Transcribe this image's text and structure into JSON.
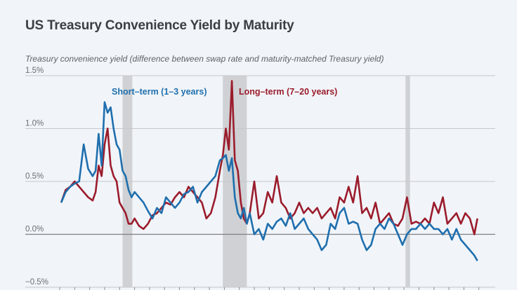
{
  "title": "US Treasury Convenience Yield by Maturity",
  "subtitle": "Treasury convenience yield (difference between swap rate and maturity-matched Treasury yield)",
  "chart_data": {
    "type": "line",
    "title": "US Treasury Convenience Yield by Maturity",
    "ylabel": "Treasury convenience yield (difference between swap rate and maturity-matched Treasury yield)",
    "xlabel": "",
    "ylim": [
      -0.5,
      1.5
    ],
    "xlim": [
      1997,
      2026
    ],
    "yticks": [
      1.5,
      1.0,
      0.5,
      0.0,
      -0.5
    ],
    "ytick_labels": [
      "1.5%",
      "1.0%",
      "0.5%",
      "0.0%",
      "−0.5%"
    ],
    "grid": true,
    "legend": "inline labels",
    "recessions": [
      [
        2001.2,
        2001.85
      ],
      [
        2007.9,
        2009.5
      ],
      [
        2020.1,
        2020.4
      ]
    ],
    "series": [
      {
        "name": "Short-term (1–3 years)",
        "color": "#1f6fae",
        "x": [
          1997.1,
          1997.4,
          1997.7,
          1998.0,
          1998.3,
          1998.6,
          1998.9,
          1999.2,
          1999.4,
          1999.6,
          1999.8,
          2000.0,
          2000.2,
          2000.4,
          2000.6,
          2000.8,
          2001.0,
          2001.2,
          2001.4,
          2001.6,
          2001.8,
          2002.0,
          2002.3,
          2002.6,
          2002.9,
          2003.2,
          2003.5,
          2003.8,
          2004.1,
          2004.4,
          2004.7,
          2005.0,
          2005.3,
          2005.6,
          2005.9,
          2006.2,
          2006.5,
          2006.8,
          2007.1,
          2007.4,
          2007.7,
          2007.9,
          2008.1,
          2008.3,
          2008.5,
          2008.7,
          2008.9,
          2009.1,
          2009.3,
          2009.5,
          2009.7,
          2010.0,
          2010.3,
          2010.6,
          2010.9,
          2011.2,
          2011.5,
          2011.8,
          2012.1,
          2012.4,
          2012.7,
          2013.0,
          2013.3,
          2013.6,
          2013.9,
          2014.2,
          2014.5,
          2014.8,
          2015.1,
          2015.4,
          2015.7,
          2016.0,
          2016.3,
          2016.6,
          2016.9,
          2017.2,
          2017.5,
          2017.8,
          2018.1,
          2018.4,
          2018.7,
          2019.0,
          2019.3,
          2019.6,
          2019.9,
          2020.2,
          2020.5,
          2020.8,
          2021.1,
          2021.4,
          2021.7,
          2022.0,
          2022.3,
          2022.6,
          2022.9,
          2023.2,
          2023.5,
          2023.8,
          2024.1,
          2024.4,
          2024.7,
          2024.9
        ],
        "y": [
          0.3,
          0.4,
          0.45,
          0.48,
          0.5,
          0.85,
          0.62,
          0.55,
          0.6,
          0.95,
          0.65,
          1.25,
          1.15,
          1.2,
          1.0,
          0.85,
          0.8,
          0.6,
          0.55,
          0.42,
          0.35,
          0.4,
          0.35,
          0.3,
          0.22,
          0.15,
          0.25,
          0.2,
          0.35,
          0.3,
          0.25,
          0.3,
          0.38,
          0.4,
          0.45,
          0.3,
          0.4,
          0.45,
          0.5,
          0.55,
          0.7,
          0.72,
          0.75,
          0.6,
          0.72,
          0.35,
          0.2,
          0.15,
          0.25,
          0.1,
          0.2,
          0.0,
          0.05,
          -0.05,
          0.1,
          0.05,
          0.12,
          0.15,
          0.08,
          0.2,
          0.05,
          0.1,
          0.15,
          0.05,
          0.0,
          -0.05,
          -0.15,
          -0.1,
          0.1,
          0.05,
          0.2,
          0.25,
          0.1,
          0.12,
          0.1,
          -0.05,
          -0.15,
          -0.1,
          0.05,
          0.1,
          0.05,
          0.15,
          0.1,
          0.0,
          -0.1,
          0.0,
          0.05,
          0.05,
          0.1,
          0.05,
          0.1,
          0.05,
          0.05,
          0.0,
          0.05,
          -0.05,
          0.05,
          -0.05,
          -0.1,
          -0.15,
          -0.2,
          -0.25
        ]
      },
      {
        "name": "Long-term (7–20 years)",
        "color": "#9b1c2c",
        "x": [
          1997.1,
          1997.4,
          1997.7,
          1998.0,
          1998.3,
          1998.6,
          1998.9,
          1999.2,
          1999.4,
          1999.6,
          1999.8,
          2000.0,
          2000.2,
          2000.4,
          2000.6,
          2000.8,
          2001.0,
          2001.2,
          2001.4,
          2001.6,
          2001.8,
          2002.0,
          2002.3,
          2002.6,
          2002.9,
          2003.2,
          2003.5,
          2003.8,
          2004.1,
          2004.4,
          2004.7,
          2005.0,
          2005.3,
          2005.6,
          2005.9,
          2006.2,
          2006.5,
          2006.8,
          2007.1,
          2007.4,
          2007.7,
          2007.9,
          2008.1,
          2008.3,
          2008.5,
          2008.7,
          2008.9,
          2009.1,
          2009.3,
          2009.5,
          2009.7,
          2010.0,
          2010.3,
          2010.6,
          2010.9,
          2011.2,
          2011.5,
          2011.8,
          2012.1,
          2012.4,
          2012.7,
          2013.0,
          2013.3,
          2013.6,
          2013.9,
          2014.2,
          2014.5,
          2014.8,
          2015.1,
          2015.4,
          2015.7,
          2016.0,
          2016.3,
          2016.6,
          2016.9,
          2017.2,
          2017.5,
          2017.8,
          2018.1,
          2018.4,
          2018.7,
          2019.0,
          2019.3,
          2019.6,
          2019.9,
          2020.2,
          2020.5,
          2020.8,
          2021.1,
          2021.4,
          2021.7,
          2022.0,
          2022.3,
          2022.6,
          2022.9,
          2023.2,
          2023.5,
          2023.8,
          2024.1,
          2024.4,
          2024.7,
          2024.9
        ],
        "y": [
          0.3,
          0.42,
          0.45,
          0.5,
          0.45,
          0.4,
          0.35,
          0.32,
          0.4,
          0.65,
          0.55,
          0.85,
          1.0,
          0.65,
          0.55,
          0.5,
          0.3,
          0.25,
          0.2,
          0.1,
          0.1,
          0.15,
          0.08,
          0.05,
          0.1,
          0.18,
          0.2,
          0.25,
          0.3,
          0.28,
          0.35,
          0.4,
          0.35,
          0.45,
          0.4,
          0.35,
          0.3,
          0.15,
          0.2,
          0.35,
          0.6,
          0.75,
          1.0,
          0.8,
          1.45,
          0.7,
          0.6,
          0.3,
          0.15,
          0.1,
          0.2,
          0.5,
          0.15,
          0.2,
          0.4,
          0.3,
          0.55,
          0.3,
          0.25,
          0.15,
          0.2,
          0.3,
          0.2,
          0.25,
          0.2,
          0.25,
          0.15,
          0.2,
          0.25,
          0.15,
          0.35,
          0.3,
          0.45,
          0.3,
          0.55,
          0.2,
          0.25,
          0.15,
          0.3,
          0.1,
          0.15,
          0.2,
          0.1,
          0.08,
          0.15,
          0.35,
          0.1,
          0.12,
          0.1,
          0.15,
          0.1,
          0.3,
          0.2,
          0.35,
          0.1,
          0.15,
          0.2,
          0.1,
          0.2,
          0.15,
          0.0,
          0.15
        ]
      }
    ],
    "annotations": [
      {
        "text": "Short–term (1–3 years)",
        "series": "Short-term (1–3 years)"
      },
      {
        "text": "Long–term (7–20 years)",
        "series": "Long-term (7–20 years)"
      }
    ]
  }
}
